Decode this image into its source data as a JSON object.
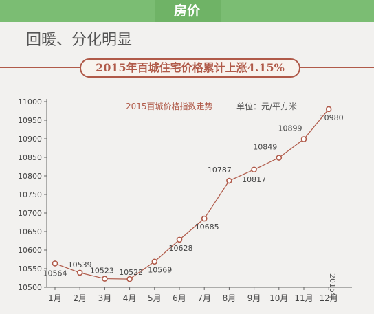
{
  "header": {
    "title": "房价"
  },
  "subtitle": "回暖、分化明显",
  "banner": "2015年百城住宅价格累计上涨4.15%",
  "chart_data": {
    "type": "line",
    "title": "2015百城价格指数走势",
    "unit_label": "单位：元/平方米",
    "year_label": "2015年",
    "categories": [
      "1月",
      "2月",
      "3月",
      "4月",
      "5月",
      "6月",
      "7月",
      "8月",
      "9月",
      "10月",
      "11月",
      "12月"
    ],
    "values": [
      10564,
      10539,
      10523,
      10522,
      10569,
      10628,
      10685,
      10787,
      10817,
      10849,
      10899,
      10980
    ],
    "yticks": [
      10500,
      10550,
      10600,
      10650,
      10700,
      10750,
      10800,
      10850,
      10900,
      10950,
      11000
    ],
    "ylim": [
      10500,
      11000
    ],
    "line_color": "#b05a49",
    "grid": false
  }
}
